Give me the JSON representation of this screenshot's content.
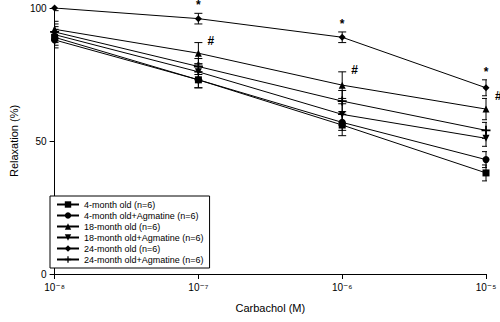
{
  "chart_data": {
    "type": "line",
    "x_label": "Carbachol (M)",
    "y_label": "Relaxation (%)",
    "log": "x",
    "x": [
      1e-08,
      1e-07,
      1e-06,
      1e-05
    ],
    "xlim": [
      1e-08,
      1e-05
    ],
    "xticks": [
      {
        "value": 1e-08,
        "label": "10⁻⁸"
      },
      {
        "value": 1e-07,
        "label": "10⁻⁷"
      },
      {
        "value": 1e-06,
        "label": "10⁻⁶"
      },
      {
        "value": 1e-05,
        "label": "10⁻⁵"
      }
    ],
    "ylim": [
      0,
      100
    ],
    "yticks": [
      0,
      50,
      100
    ],
    "grid": false,
    "legend": "lower left",
    "series": [
      {
        "name": "4-month old (n=6)",
        "color": "#000000",
        "marker": "square",
        "values": [
          89,
          73,
          56,
          38
        ],
        "errors": [
          3,
          3,
          4,
          3
        ]
      },
      {
        "name": "4-month old+Agmatine (n=6)",
        "color": "#000000",
        "marker": "circle",
        "values": [
          88,
          73,
          57,
          43
        ],
        "errors": [
          3,
          3,
          3,
          3
        ]
      },
      {
        "name": "18-month old (n=6)",
        "color": "#000000",
        "marker": "triangle",
        "values": [
          92,
          83,
          71,
          62
        ],
        "errors": [
          3,
          4,
          5,
          4
        ],
        "significance": [
          null,
          "#",
          "#",
          "#"
        ]
      },
      {
        "name": "18-month old+Agmatine (n=6)",
        "color": "#000000",
        "marker": "triangle-down",
        "values": [
          90,
          76,
          60,
          51
        ],
        "errors": [
          3,
          3,
          4,
          3
        ]
      },
      {
        "name": "24-month old (n=6)",
        "color": "#000000",
        "marker": "diamond",
        "values": [
          100,
          96,
          89,
          70
        ],
        "errors": [
          1,
          2,
          2,
          3
        ],
        "significance": [
          null,
          "*",
          "*",
          "*"
        ]
      },
      {
        "name": "24-month old+Agmatine (n=6)",
        "color": "#000000",
        "marker": "plus",
        "values": [
          91,
          78,
          65,
          54
        ],
        "errors": [
          3,
          3,
          4,
          3
        ]
      }
    ]
  }
}
